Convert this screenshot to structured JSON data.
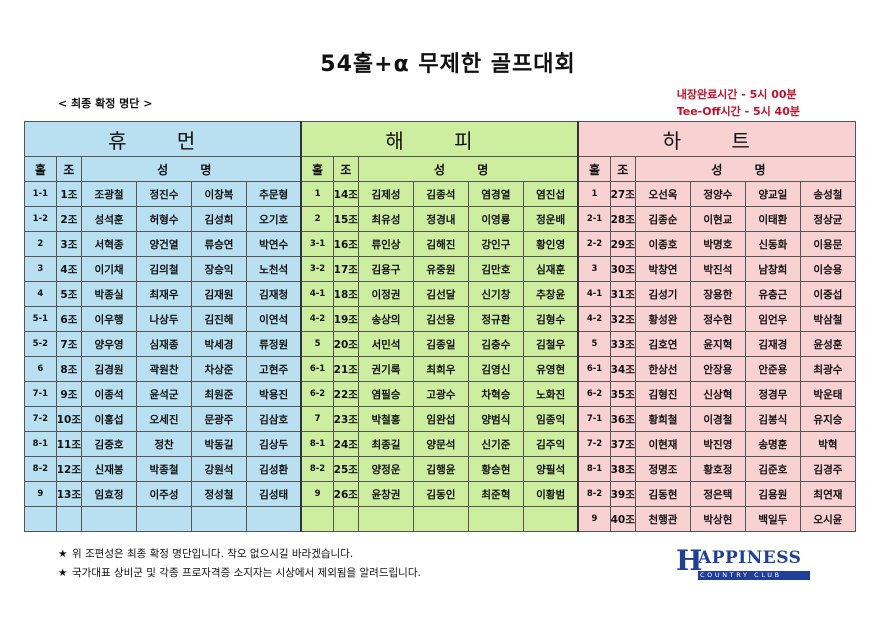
{
  "title": "54홀+α 무제한 골프대회",
  "subtitle": "< 최종 확정 명단 >",
  "info": [
    "내장완료시간 - 5시 00분",
    "Tee-Off시간 - 5시 40분"
  ],
  "headers": {
    "hole": "홀",
    "group": "조",
    "names": "성 명"
  },
  "sections": [
    {
      "name": "휴 먼",
      "color": "#b9e0f1",
      "rows": [
        {
          "hole": "1-1",
          "group": "1조",
          "names": [
            "조광철",
            "정진수",
            "이창복",
            "추문형"
          ]
        },
        {
          "hole": "1-2",
          "group": "2조",
          "names": [
            "성석훈",
            "허형수",
            "김성희",
            "오기호"
          ]
        },
        {
          "hole": "2",
          "group": "3조",
          "names": [
            "서혁종",
            "양건열",
            "류승연",
            "박연수"
          ]
        },
        {
          "hole": "3",
          "group": "4조",
          "names": [
            "이기채",
            "김의철",
            "장승익",
            "노천석"
          ]
        },
        {
          "hole": "4",
          "group": "5조",
          "names": [
            "박종실",
            "최재우",
            "김재원",
            "김재청"
          ]
        },
        {
          "hole": "5-1",
          "group": "6조",
          "names": [
            "이우행",
            "나상두",
            "김진해",
            "이연석"
          ]
        },
        {
          "hole": "5-2",
          "group": "7조",
          "names": [
            "양우영",
            "심재종",
            "박세경",
            "류정원"
          ]
        },
        {
          "hole": "6",
          "group": "8조",
          "names": [
            "김경원",
            "곽원찬",
            "차상준",
            "고현주"
          ]
        },
        {
          "hole": "7-1",
          "group": "9조",
          "names": [
            "이종석",
            "윤석군",
            "최원준",
            "박용진"
          ]
        },
        {
          "hole": "7-2",
          "group": "10조",
          "names": [
            "이홍섭",
            "오세진",
            "문광주",
            "김삼호"
          ]
        },
        {
          "hole": "8-1",
          "group": "11조",
          "names": [
            "김중호",
            "정찬",
            "박동길",
            "김상두"
          ]
        },
        {
          "hole": "8-2",
          "group": "12조",
          "names": [
            "신재봉",
            "박종철",
            "강원석",
            "김성환"
          ]
        },
        {
          "hole": "9",
          "group": "13조",
          "names": [
            "임효정",
            "이주성",
            "정성철",
            "김성태"
          ]
        },
        {
          "hole": "",
          "group": "",
          "names": [
            "",
            "",
            "",
            ""
          ]
        }
      ]
    },
    {
      "name": "해 피",
      "color": "#cdee9f",
      "rows": [
        {
          "hole": "1",
          "group": "14조",
          "names": [
            "김제성",
            "김종석",
            "염경열",
            "염진섭"
          ]
        },
        {
          "hole": "2",
          "group": "15조",
          "names": [
            "최유성",
            "정경내",
            "이영룡",
            "정운배"
          ]
        },
        {
          "hole": "3-1",
          "group": "16조",
          "names": [
            "류인상",
            "김해진",
            "강인구",
            "황인영"
          ]
        },
        {
          "hole": "3-2",
          "group": "17조",
          "names": [
            "김용구",
            "유중원",
            "김만호",
            "심재훈"
          ]
        },
        {
          "hole": "4-1",
          "group": "18조",
          "names": [
            "이정권",
            "김선달",
            "신기창",
            "추창윤"
          ]
        },
        {
          "hole": "4-2",
          "group": "19조",
          "names": [
            "송상의",
            "김선용",
            "정규환",
            "김형수"
          ]
        },
        {
          "hole": "5",
          "group": "20조",
          "names": [
            "서민석",
            "김종일",
            "김충수",
            "김철우"
          ]
        },
        {
          "hole": "6-1",
          "group": "21조",
          "names": [
            "권기록",
            "최희우",
            "김영신",
            "유영현"
          ]
        },
        {
          "hole": "6-2",
          "group": "22조",
          "names": [
            "염필승",
            "고광수",
            "차혁승",
            "노화진"
          ]
        },
        {
          "hole": "7",
          "group": "23조",
          "names": [
            "박철홍",
            "임완섭",
            "양범식",
            "임종익"
          ]
        },
        {
          "hole": "8-1",
          "group": "24조",
          "names": [
            "최종길",
            "양문석",
            "신기준",
            "김주익"
          ]
        },
        {
          "hole": "8-2",
          "group": "25조",
          "names": [
            "양정운",
            "김행윤",
            "황승현",
            "양필석"
          ]
        },
        {
          "hole": "9",
          "group": "26조",
          "names": [
            "윤창권",
            "김동인",
            "최준혁",
            "이황범"
          ]
        },
        {
          "hole": "",
          "group": "",
          "names": [
            "",
            "",
            "",
            ""
          ]
        }
      ]
    },
    {
      "name": "하 트",
      "color": "#f8d1d3",
      "rows": [
        {
          "hole": "1",
          "group": "27조",
          "names": [
            "오선옥",
            "정양수",
            "양교일",
            "송성철"
          ]
        },
        {
          "hole": "2-1",
          "group": "28조",
          "names": [
            "김종순",
            "이현교",
            "이태환",
            "정상균"
          ]
        },
        {
          "hole": "2-2",
          "group": "29조",
          "names": [
            "이종호",
            "박명호",
            "신동화",
            "이용문"
          ]
        },
        {
          "hole": "3",
          "group": "30조",
          "names": [
            "박창연",
            "박진석",
            "남창희",
            "이승용"
          ]
        },
        {
          "hole": "4-1",
          "group": "31조",
          "names": [
            "김성기",
            "장용한",
            "유충근",
            "이중섭"
          ]
        },
        {
          "hole": "4-2",
          "group": "32조",
          "names": [
            "황성완",
            "정수현",
            "임언우",
            "박삼철"
          ]
        },
        {
          "hole": "5",
          "group": "33조",
          "names": [
            "김호연",
            "윤지혁",
            "김재경",
            "윤성훈"
          ]
        },
        {
          "hole": "6-1",
          "group": "34조",
          "names": [
            "한상선",
            "안장용",
            "안준용",
            "최광수"
          ]
        },
        {
          "hole": "6-2",
          "group": "35조",
          "names": [
            "김형진",
            "신상혁",
            "정경무",
            "박운태"
          ]
        },
        {
          "hole": "7-1",
          "group": "36조",
          "names": [
            "황희철",
            "이경철",
            "김봉식",
            "유지승"
          ]
        },
        {
          "hole": "7-2",
          "group": "37조",
          "names": [
            "이현재",
            "박진영",
            "송명훈",
            "박혁"
          ]
        },
        {
          "hole": "8-1",
          "group": "38조",
          "names": [
            "정명조",
            "황호정",
            "김준호",
            "김경주"
          ]
        },
        {
          "hole": "8-2",
          "group": "39조",
          "names": [
            "김동현",
            "정은택",
            "김용원",
            "최연재"
          ]
        },
        {
          "hole": "9",
          "group": "40조",
          "names": [
            "천행관",
            "박상현",
            "백일두",
            "오시윤"
          ]
        }
      ]
    }
  ],
  "notes": [
    "위 조편성은 최종 확정 명단입니다. 착오 없으시길 바라겠습니다.",
    "국가대표 상비군 및 각종 프로자격증 소지자는 시상에서 제외됨을 알려드립니다."
  ],
  "note_bullet": "★",
  "logo": {
    "text": "APPINESS",
    "initial": "H",
    "sub": "COUNTRY CLUB"
  }
}
